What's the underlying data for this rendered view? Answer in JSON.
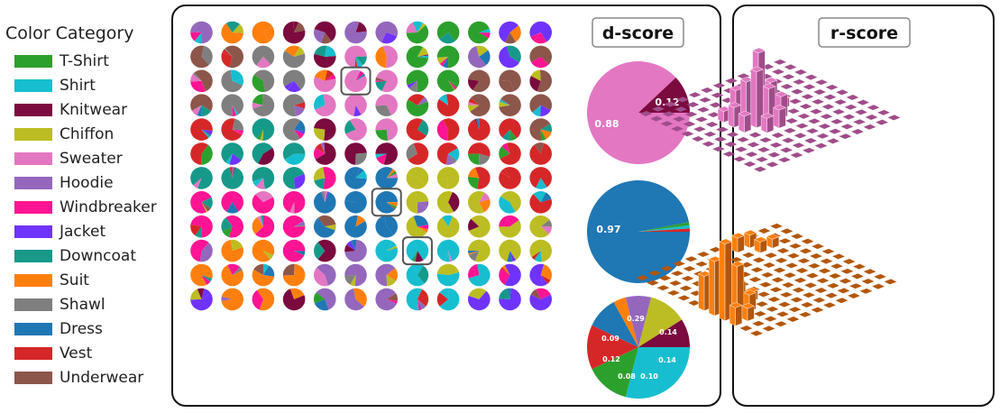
{
  "categories": [
    {
      "name": "T-Shirt",
      "color": "#2ca02c"
    },
    {
      "name": "Shirt",
      "color": "#17becf"
    },
    {
      "name": "Knitwear",
      "color": "#7b0a3e"
    },
    {
      "name": "Chiffon",
      "color": "#bcbd22"
    },
    {
      "name": "Sweater",
      "color": "#e377c2"
    },
    {
      "name": "Hoodie",
      "color": "#9467bd"
    },
    {
      "name": "Windbreaker",
      "color": "#ff1493"
    },
    {
      "name": "Jacket",
      "color": "#7033ff"
    },
    {
      "name": "Downcoat",
      "color": "#17998a"
    },
    {
      "name": "Suit",
      "color": "#ff7f0e"
    },
    {
      "name": "Shawl",
      "color": "#7f7f7f"
    },
    {
      "name": "Dress",
      "color": "#1f77b4"
    },
    {
      "name": "Vest",
      "color": "#d62728"
    },
    {
      "name": "Underwear",
      "color": "#8c564b"
    }
  ],
  "legend": {
    "title": "Color Category"
  },
  "d_panel": {
    "title": "d-score",
    "grid": [
      [
        "Hoodie",
        "Suit",
        "Suit",
        "Knitwear",
        "Knitwear",
        "Hoodie",
        "Hoodie",
        "T-Shirt",
        "T-Shirt",
        "T-Shirt",
        "Jacket",
        "Jacket"
      ],
      [
        "Underwear",
        "Underwear",
        "Shawl",
        "Shawl",
        "Knitwear",
        "Sweater",
        "Sweater",
        "T-Shirt",
        "T-Shirt",
        "Hoodie",
        "Jacket",
        "Underwear"
      ],
      [
        "Underwear",
        "Shawl",
        "Shawl",
        "Shawl",
        "Sweater",
        "Sweater",
        "Sweater",
        "T-Shirt",
        "T-Shirt",
        "Underwear",
        "Underwear",
        "Underwear"
      ],
      [
        "Underwear",
        "Shawl",
        "Shawl",
        "Shawl",
        "Sweater",
        "Sweater",
        "Sweater",
        "T-Shirt",
        "Vest",
        "Underwear",
        "Underwear",
        "Underwear"
      ],
      [
        "Vest",
        "Vest",
        "Downcoat",
        "Shawl",
        "Knitwear",
        "Sweater",
        "Sweater",
        "Vest",
        "Vest",
        "Vest",
        "Vest",
        "Underwear"
      ],
      [
        "Vest",
        "Downcoat",
        "Downcoat",
        "Downcoat",
        "Knitwear",
        "Knitwear",
        "Knitwear",
        "Vest",
        "Vest",
        "Vest",
        "Vest",
        "Vest"
      ],
      [
        "Downcoat",
        "Downcoat",
        "Downcoat",
        "Downcoat",
        "Windbreaker",
        "Dress",
        "Dress",
        "Chiffon",
        "Chiffon",
        "Vest",
        "Vest",
        "Vest"
      ],
      [
        "Windbreaker",
        "Windbreaker",
        "Windbreaker",
        "Windbreaker",
        "Dress",
        "Dress",
        "Dress",
        "Chiffon",
        "Chiffon",
        "Chiffon",
        "Chiffon",
        "Vest"
      ],
      [
        "Windbreaker",
        "Windbreaker",
        "Windbreaker",
        "Windbreaker",
        "Dress",
        "Dress",
        "Dress",
        "Chiffon",
        "Chiffon",
        "Chiffon",
        "Chiffon",
        "Chiffon"
      ],
      [
        "Windbreaker",
        "Suit",
        "Suit",
        "Windbreaker",
        "Knitwear",
        "Hoodie",
        "Shirt",
        "Shirt",
        "Shirt",
        "Chiffon",
        "Chiffon",
        "Chiffon"
      ],
      [
        "Suit",
        "Suit",
        "Suit",
        "Suit",
        "Hoodie",
        "Hoodie",
        "Hoodie",
        "Shirt",
        "Shirt",
        "Shirt",
        "Jacket",
        "Jacket"
      ],
      [
        "Jacket",
        "Suit",
        "Suit",
        "Knitwear",
        "Hoodie",
        "Hoodie",
        "Hoodie",
        "Shirt",
        "Shirt",
        "Jacket",
        "Jacket",
        "Jacket"
      ]
    ],
    "highlighted_cells": [
      [
        2,
        5
      ],
      [
        7,
        6
      ],
      [
        9,
        7
      ]
    ],
    "big_pies": [
      {
        "slices": [
          {
            "cat": "Sweater",
            "value": 0.88,
            "label": "0.88"
          },
          {
            "cat": "Knitwear",
            "value": 0.12,
            "label": "0.12"
          }
        ]
      },
      {
        "slices": [
          {
            "cat": "Dress",
            "value": 0.97,
            "label": "0.97"
          },
          {
            "cat": "T-Shirt",
            "value": 0.01,
            "label": ""
          },
          {
            "cat": "Shirt",
            "value": 0.01,
            "label": ""
          },
          {
            "cat": "Vest",
            "value": 0.01,
            "label": ""
          }
        ]
      },
      {
        "slices": [
          {
            "cat": "Shirt",
            "value": 0.29,
            "label": "0.29"
          },
          {
            "cat": "T-Shirt",
            "value": 0.14,
            "label": "0.14"
          },
          {
            "cat": "Vest",
            "value": 0.14,
            "label": "0.14"
          },
          {
            "cat": "Dress",
            "value": 0.1,
            "label": "0.10"
          },
          {
            "cat": "Suit",
            "value": 0.04,
            "label": ""
          },
          {
            "cat": "Hoodie",
            "value": 0.08,
            "label": "0.08"
          },
          {
            "cat": "Chiffon",
            "value": 0.12,
            "label": "0.12"
          },
          {
            "cat": "Knitwear",
            "value": 0.09,
            "label": "0.09"
          }
        ]
      }
    ]
  },
  "r_panel": {
    "title": "r-score",
    "plots": [
      {
        "color": "#e377c2",
        "dark": "#a04c8a"
      },
      {
        "color": "#ff7f0e",
        "dark": "#b3560a"
      }
    ]
  }
}
